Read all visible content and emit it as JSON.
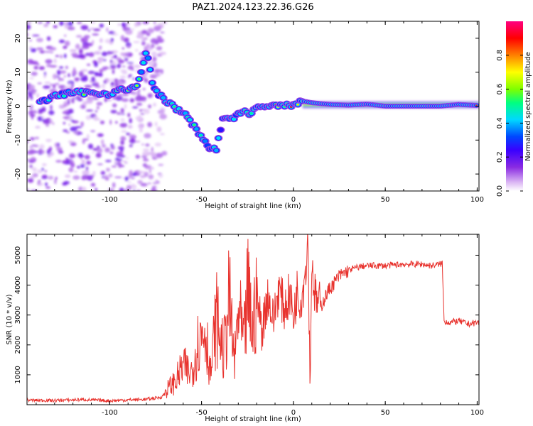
{
  "figure": {
    "title": "PAZ1.2024.123.22.36.G26"
  },
  "chart_data": [
    {
      "type": "heatmap",
      "title": "PAZ1.2024.123.22.36.G26",
      "xlabel": "Height of straight line (km)",
      "ylabel": "Frequency (Hz)",
      "xlim": [
        -145,
        101
      ],
      "ylim": [
        -25,
        25
      ],
      "xticks": [
        -100,
        -50,
        0,
        50,
        100
      ],
      "yticks": [
        -20,
        -10,
        0,
        10,
        20
      ],
      "colorbar": {
        "label": "Normalized spectral amplitude",
        "range": [
          0,
          1
        ],
        "ticks": [
          0.0,
          0.2,
          0.4,
          0.6,
          0.8
        ],
        "colormap": [
          "#ffffff",
          "#dcb8f4",
          "#8a2be2",
          "#3a00ff",
          "#0047ff",
          "#00d8ff",
          "#00ff80",
          "#7fff00",
          "#ffff00",
          "#ff8000",
          "#ff0000",
          "#ff0080"
        ]
      },
      "ridge": {
        "x": [
          -138,
          -130,
          -120,
          -110,
          -100,
          -95,
          -90,
          -85,
          -80,
          -76,
          -72,
          -68,
          -63,
          -58,
          -54,
          -50,
          -46,
          -42,
          -38,
          -33,
          -28,
          -24,
          -20,
          -15,
          -10,
          -5,
          0,
          5,
          10,
          20,
          30,
          40,
          50,
          60,
          70,
          80,
          90,
          100
        ],
        "y": [
          1,
          3,
          4,
          4,
          3.5,
          5,
          4.5,
          6,
          16,
          5,
          3,
          1,
          -1,
          -3,
          -6,
          -9,
          -12,
          -13,
          -3,
          -4,
          -1.5,
          -2,
          -0.5,
          0,
          0,
          0,
          0.5,
          1.5,
          1,
          0.5,
          0.3,
          0.6,
          0,
          0,
          0,
          0,
          0.5,
          0.2
        ],
        "amplitude": [
          0.5,
          0.4,
          0.6,
          0.6,
          0.55,
          0.7,
          0.65,
          0.6,
          0.5,
          0.35,
          0.45,
          0.6,
          0.55,
          0.6,
          0.55,
          0.5,
          0.45,
          0.4,
          0.4,
          0.45,
          0.55,
          0.6,
          0.7,
          0.75,
          0.8,
          0.8,
          0.85,
          0.9,
          0.95,
          0.95,
          0.95,
          0.95,
          0.95,
          0.95,
          0.95,
          0.95,
          0.95,
          0.95
        ]
      }
    },
    {
      "type": "line",
      "xlabel": "Height of straight line (km)",
      "ylabel": "SNR (10 * v/v)",
      "xlim": [
        -145,
        101
      ],
      "ylim": [
        0,
        5700
      ],
      "xticks": [
        -100,
        -50,
        0,
        50,
        100
      ],
      "yticks": [
        1000,
        2000,
        3000,
        4000,
        5000
      ],
      "color": "#e8332e",
      "series": [
        {
          "x": [
            -145,
            -130,
            -115,
            -100,
            -90,
            -80,
            -72,
            -68,
            -64,
            -60,
            -56,
            -52,
            -48,
            -45,
            -42,
            -38,
            -35,
            -32,
            -30,
            -27,
            -25,
            -22,
            -20,
            -17,
            -14,
            -11,
            -8,
            -5,
            -2,
            0,
            2,
            4,
            6,
            8,
            9,
            10,
            12,
            15,
            18,
            20,
            25,
            30,
            35,
            40,
            50,
            60,
            70,
            75,
            80,
            81,
            82,
            85,
            90,
            95,
            100,
            101
          ],
          "y": [
            150,
            140,
            170,
            130,
            160,
            180,
            250,
            500,
            700,
            1150,
            900,
            1800,
            2300,
            900,
            2600,
            1500,
            3100,
            1200,
            2800,
            1700,
            3300,
            2100,
            3600,
            2500,
            3700,
            2800,
            3900,
            3200,
            3700,
            2900,
            3800,
            3500,
            4200,
            5600,
            700,
            4700,
            3500,
            3300,
            3700,
            3900,
            4300,
            4500,
            4600,
            4650,
            4650,
            4700,
            4700,
            4650,
            4700,
            4750,
            2800,
            2750,
            2800,
            2700,
            2750,
            2750
          ]
        }
      ]
    }
  ]
}
